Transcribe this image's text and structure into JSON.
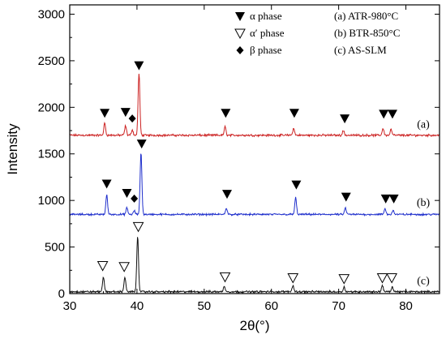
{
  "chart_data": {
    "type": "line",
    "title": "",
    "xlabel": "2θ(°)",
    "ylabel": "Intensity",
    "xlim": [
      30,
      85
    ],
    "ylim": [
      0,
      3100
    ],
    "xticks": [
      30,
      40,
      50,
      60,
      70,
      80
    ],
    "yticks": [
      0,
      500,
      1000,
      1500,
      2000,
      2500,
      3000
    ],
    "grid": false,
    "series": [
      {
        "label": "(a)",
        "color": "#cc2222",
        "baseline": 1700,
        "noise": 14,
        "peaks": [
          {
            "x": 35.2,
            "y": 1830
          },
          {
            "x": 38.3,
            "y": 1800
          },
          {
            "x": 39.3,
            "y": 1760
          },
          {
            "x": 40.3,
            "y": 2370
          },
          {
            "x": 53.1,
            "y": 1790
          },
          {
            "x": 63.3,
            "y": 1775
          },
          {
            "x": 70.7,
            "y": 1750
          },
          {
            "x": 76.6,
            "y": 1775
          },
          {
            "x": 77.8,
            "y": 1765
          }
        ]
      },
      {
        "label": "(b)",
        "color": "#1f2fcc",
        "baseline": 850,
        "noise": 12,
        "peaks": [
          {
            "x": 35.5,
            "y": 1060
          },
          {
            "x": 38.5,
            "y": 920
          },
          {
            "x": 39.6,
            "y": 890
          },
          {
            "x": 40.6,
            "y": 1520
          },
          {
            "x": 53.3,
            "y": 920
          },
          {
            "x": 63.6,
            "y": 1030
          },
          {
            "x": 71.0,
            "y": 920
          },
          {
            "x": 76.9,
            "y": 910
          },
          {
            "x": 78.1,
            "y": 895
          }
        ]
      },
      {
        "label": "(c)",
        "color": "#111111",
        "baseline": 20,
        "noise": 13,
        "peaks": [
          {
            "x": 35.0,
            "y": 180
          },
          {
            "x": 38.2,
            "y": 180
          },
          {
            "x": 40.1,
            "y": 620
          },
          {
            "x": 53.0,
            "y": 80
          },
          {
            "x": 63.2,
            "y": 90
          },
          {
            "x": 70.8,
            "y": 70
          },
          {
            "x": 76.5,
            "y": 90
          },
          {
            "x": 78.0,
            "y": 70
          }
        ]
      }
    ],
    "markers": [
      {
        "type": "alpha",
        "x": 35.2,
        "y": 1940
      },
      {
        "type": "alpha",
        "x": 38.3,
        "y": 1950
      },
      {
        "type": "beta",
        "x": 39.3,
        "y": 1880
      },
      {
        "type": "alpha",
        "x": 40.3,
        "y": 2450
      },
      {
        "type": "alpha",
        "x": 53.2,
        "y": 1940
      },
      {
        "type": "alpha",
        "x": 63.4,
        "y": 1940
      },
      {
        "type": "alpha",
        "x": 70.9,
        "y": 1880
      },
      {
        "type": "alpha",
        "x": 76.7,
        "y": 1930
      },
      {
        "type": "alpha",
        "x": 78.0,
        "y": 1930
      },
      {
        "type": "alpha",
        "x": 35.5,
        "y": 1180
      },
      {
        "type": "alpha",
        "x": 38.5,
        "y": 1080
      },
      {
        "type": "beta",
        "x": 39.6,
        "y": 1020
      },
      {
        "type": "alpha",
        "x": 40.7,
        "y": 1610
      },
      {
        "type": "alpha",
        "x": 53.4,
        "y": 1070
      },
      {
        "type": "alpha",
        "x": 63.7,
        "y": 1170
      },
      {
        "type": "alpha",
        "x": 71.1,
        "y": 1040
      },
      {
        "type": "alpha",
        "x": 77.0,
        "y": 1020
      },
      {
        "type": "alpha",
        "x": 78.2,
        "y": 1020
      },
      {
        "type": "alpha_prime",
        "x": 34.9,
        "y": 300
      },
      {
        "type": "alpha_prime",
        "x": 38.1,
        "y": 290
      },
      {
        "type": "alpha_prime",
        "x": 40.2,
        "y": 720
      },
      {
        "type": "alpha_prime",
        "x": 53.1,
        "y": 180
      },
      {
        "type": "alpha_prime",
        "x": 63.2,
        "y": 170
      },
      {
        "type": "alpha_prime",
        "x": 70.8,
        "y": 160
      },
      {
        "type": "alpha_prime",
        "x": 76.5,
        "y": 170
      },
      {
        "type": "alpha_prime",
        "x": 77.9,
        "y": 170
      }
    ],
    "legend": {
      "placement": "top-right",
      "phases": [
        {
          "symbol": "alpha",
          "text": "α  phase"
        },
        {
          "symbol": "alpha_prime",
          "text": "α′ phase"
        },
        {
          "symbol": "beta",
          "text": "β  phase"
        }
      ],
      "samples": [
        "(a) ATR-980°C",
        "(b) BTR-850°C",
        "(c) AS-SLM"
      ]
    }
  }
}
